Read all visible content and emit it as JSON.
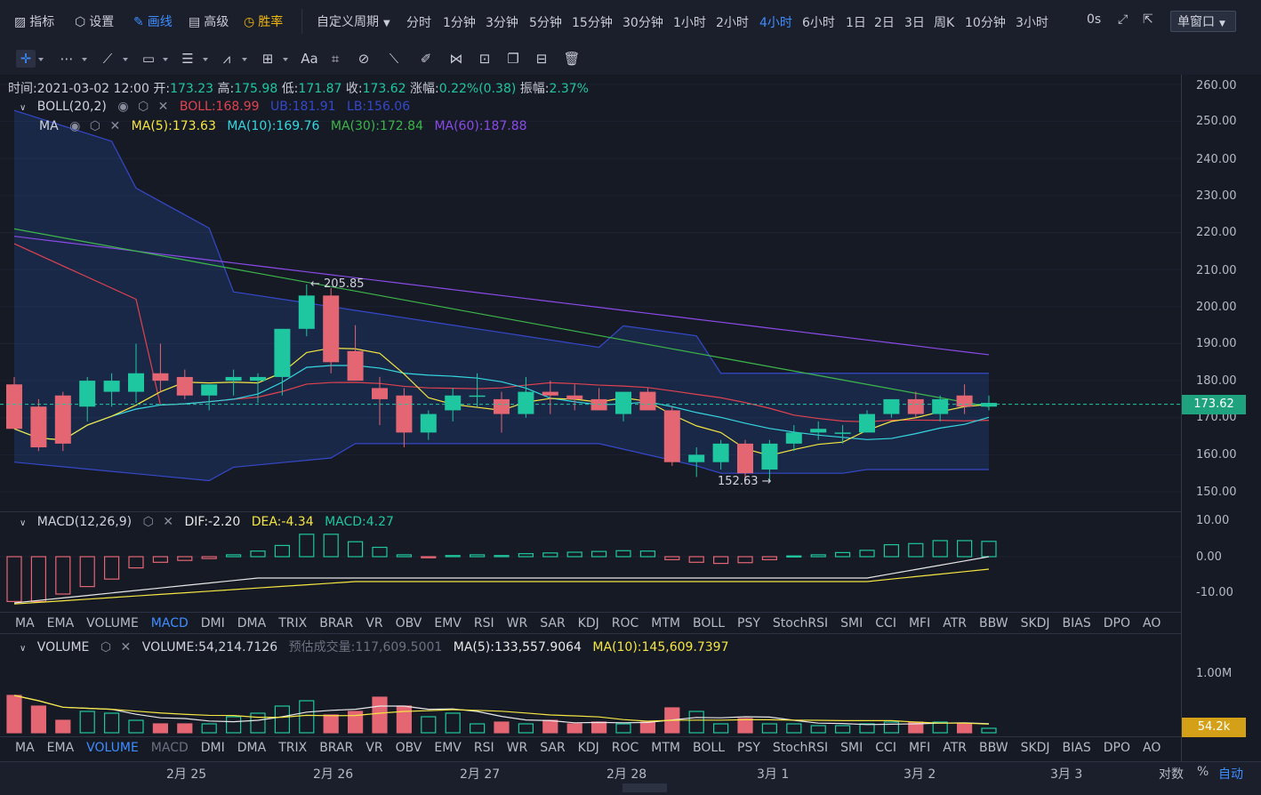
{
  "toolbar": {
    "indicator": "指标",
    "settings": "设置",
    "draw": "画线",
    "advanced": "高级",
    "winrate": "胜率",
    "custom_period": "自定义周期",
    "periods": [
      "分时",
      "1分钟",
      "3分钟",
      "5分钟",
      "15分钟",
      "30分钟",
      "1小时",
      "2小时",
      "4小时",
      "6小时",
      "1日",
      "2日",
      "3日",
      "周K",
      "10分钟",
      "3小时"
    ],
    "active_period": "4小时",
    "countdown": "0s",
    "window_mode": "单窗口"
  },
  "drawing_tools": {
    "text_tool": "Aa"
  },
  "ohlc": {
    "time_label": "时间:",
    "time": "2021-03-02 12:00",
    "open_label": "开:",
    "open": "173.23",
    "high_label": "高:",
    "high": "175.98",
    "low_label": "低:",
    "low": "171.87",
    "close_label": "收:",
    "close": "173.62",
    "change_label": "涨幅:",
    "change": "0.22%(0.38)",
    "amp_label": "振幅:",
    "amp": "2.37%"
  },
  "boll": {
    "name": "BOLL(20,2)",
    "mid": "BOLL:168.99",
    "ub": "UB:181.91",
    "lb": "LB:156.06"
  },
  "ma": {
    "name": "MA",
    "ma5": "MA(5):173.63",
    "ma10": "MA(10):169.76",
    "ma30": "MA(30):172.84",
    "ma60": "MA(60):187.88"
  },
  "macd": {
    "name": "MACD(12,26,9)",
    "dif": "DIF:-2.20",
    "dea": "DEA:-4.34",
    "macd": "MACD:4.27"
  },
  "volume": {
    "name": "VOLUME",
    "value": "VOLUME:54,214.7126",
    "estimate": "预估成交量:117,609.5001",
    "ma5": "MA(5):133,557.9064",
    "ma10": "MA(10):145,609.7397"
  },
  "indicator_tabs": [
    "MA",
    "EMA",
    "VOLUME",
    "MACD",
    "DMI",
    "DMA",
    "TRIX",
    "BRAR",
    "VR",
    "OBV",
    "EMV",
    "RSI",
    "WR",
    "SAR",
    "KDJ",
    "ROC",
    "MTM",
    "BOLL",
    "PSY",
    "StochRSI",
    "SMI",
    "CCI",
    "MFI",
    "ATR",
    "BBW",
    "SKDJ",
    "BIAS",
    "DPO",
    "AO"
  ],
  "active_tab_row1": "MACD",
  "active_tab_row2": "VOLUME",
  "price_axis": [
    "260.00",
    "250.00",
    "240.00",
    "230.00",
    "220.00",
    "210.00",
    "200.00",
    "190.00",
    "180.00",
    "170.00",
    "160.00",
    "150.00"
  ],
  "macd_axis": [
    "10.00",
    "0.00",
    "-10.00"
  ],
  "volume_axis": [
    "1.00M"
  ],
  "last_price_tag": "173.62",
  "last_volume_tag": "54.2k",
  "high_marker": "← 205.85",
  "low_marker": "152.63 →",
  "x_axis": [
    "2月 25",
    "2月 26",
    "2月 27",
    "2月 28",
    "3月 1",
    "3月 2",
    "3月 3"
  ],
  "footer": {
    "scale_log": "对数",
    "percent": "%",
    "auto": "自动"
  },
  "colors": {
    "up": "#1fc7a0",
    "down": "#e46673",
    "boll_band": "#3548c9",
    "ma5": "#f5e642",
    "ma10": "#35d7e0",
    "ma30": "#3cb64a",
    "ma60": "#8a4be8",
    "boll_mid": "#e0434f",
    "accent": "#3d8eff"
  },
  "chart_data": {
    "type": "candlestick",
    "candles_ohlc": [
      [
        179,
        181,
        167,
        167
      ],
      [
        173,
        175,
        161,
        162
      ],
      [
        176,
        177,
        161,
        163
      ],
      [
        173,
        181,
        169,
        180
      ],
      [
        177,
        182,
        173,
        180
      ],
      [
        177,
        190,
        174,
        182
      ],
      [
        182,
        190,
        177,
        180
      ],
      [
        181,
        183,
        175,
        176
      ],
      [
        176,
        178,
        172,
        179
      ],
      [
        180,
        183,
        176,
        181
      ],
      [
        180,
        182,
        174,
        181
      ],
      [
        181,
        189,
        176,
        194
      ],
      [
        194,
        206,
        192,
        203
      ],
      [
        203,
        205,
        182,
        185
      ],
      [
        188,
        195,
        180,
        180
      ],
      [
        178,
        181,
        168,
        175
      ],
      [
        176,
        178,
        162,
        166
      ],
      [
        166,
        172,
        164,
        171
      ],
      [
        172,
        178,
        169,
        176
      ],
      [
        176,
        182,
        173,
        176
      ],
      [
        175,
        177,
        166,
        171
      ],
      [
        171,
        181,
        170,
        177
      ],
      [
        177,
        180,
        171,
        176
      ],
      [
        176,
        179,
        172,
        175
      ],
      [
        175,
        178,
        172,
        172
      ],
      [
        171,
        177,
        169,
        177
      ],
      [
        177,
        178,
        172,
        172
      ],
      [
        172,
        173,
        157,
        158
      ],
      [
        158,
        162,
        154,
        160
      ],
      [
        158,
        164,
        156,
        163
      ],
      [
        163,
        164,
        152,
        155
      ],
      [
        156,
        164,
        153,
        163
      ],
      [
        163,
        168,
        161,
        166
      ],
      [
        166,
        169,
        164,
        167
      ],
      [
        166,
        168,
        163,
        166
      ],
      [
        166,
        172,
        166,
        171
      ],
      [
        171,
        175,
        170,
        175
      ],
      [
        175,
        177,
        170,
        171
      ],
      [
        171,
        176,
        169,
        175
      ],
      [
        176,
        179,
        171,
        173
      ],
      [
        173,
        176,
        172,
        174
      ]
    ],
    "boll": {
      "ub_range": [
        181.91,
        255
      ],
      "lb_range": [
        156.06,
        150
      ]
    },
    "y_range": [
      145,
      263
    ]
  }
}
